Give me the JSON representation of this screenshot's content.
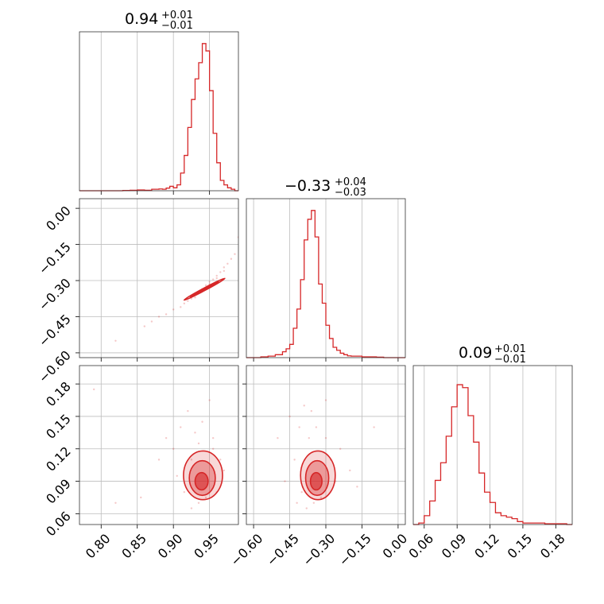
{
  "chart_data": {
    "type": "corner",
    "color": "#d62728",
    "panels": {
      "diag_0": {
        "title": {
          "value": "0.94",
          "plus": "+0.01",
          "minus": "−0.01"
        },
        "xlim": [
          0.77,
          0.99
        ],
        "hist_x": [
          0.77,
          0.79,
          0.81,
          0.83,
          0.84,
          0.85,
          0.86,
          0.87,
          0.88,
          0.885,
          0.89,
          0.895,
          0.9,
          0.905,
          0.91,
          0.915,
          0.92,
          0.925,
          0.93,
          0.935,
          0.94,
          0.945,
          0.95,
          0.955,
          0.96,
          0.965,
          0.97,
          0.975,
          0.98,
          0.985,
          0.99
        ],
        "hist_y": [
          0.0,
          0.0,
          0.0,
          0.002,
          0.003,
          0.005,
          0.003,
          0.01,
          0.012,
          0.01,
          0.018,
          0.03,
          0.02,
          0.04,
          0.12,
          0.24,
          0.43,
          0.62,
          0.76,
          0.87,
          1.0,
          0.95,
          0.68,
          0.39,
          0.19,
          0.07,
          0.04,
          0.02,
          0.01,
          0.0,
          0.0
        ]
      },
      "diag_1": {
        "title": {
          "value": "−0.33",
          "plus": "+0.04",
          "minus": "−0.03"
        },
        "xlim": [
          -0.63,
          0.03
        ],
        "hist_x": [
          -0.63,
          -0.6,
          -0.57,
          -0.54,
          -0.51,
          -0.48,
          -0.465,
          -0.45,
          -0.435,
          -0.42,
          -0.405,
          -0.39,
          -0.375,
          -0.36,
          -0.345,
          -0.33,
          -0.315,
          -0.3,
          -0.285,
          -0.27,
          -0.255,
          -0.24,
          -0.225,
          -0.21,
          -0.195,
          -0.18,
          -0.15,
          -0.12,
          -0.09,
          -0.06,
          -0.03,
          0.0,
          0.03
        ],
        "hist_y": [
          0.0,
          0.0,
          0.005,
          0.01,
          0.02,
          0.04,
          0.06,
          0.09,
          0.2,
          0.33,
          0.53,
          0.8,
          0.94,
          1.0,
          0.82,
          0.5,
          0.37,
          0.22,
          0.13,
          0.07,
          0.05,
          0.03,
          0.02,
          0.012,
          0.01,
          0.01,
          0.005,
          0.005,
          0.003,
          0.0,
          0.0,
          0.0,
          0.0
        ]
      },
      "diag_2": {
        "title": {
          "value": "0.09",
          "plus": "+0.01",
          "minus": "−0.01"
        },
        "xlim": [
          0.05,
          0.195
        ],
        "hist_x": [
          0.05,
          0.055,
          0.06,
          0.065,
          0.07,
          0.075,
          0.08,
          0.085,
          0.09,
          0.095,
          0.1,
          0.105,
          0.11,
          0.115,
          0.12,
          0.125,
          0.13,
          0.135,
          0.14,
          0.145,
          0.15,
          0.16,
          0.17,
          0.18,
          0.19,
          0.195
        ],
        "hist_y": [
          0.0,
          0.01,
          0.06,
          0.16,
          0.3,
          0.42,
          0.6,
          0.8,
          0.95,
          0.93,
          0.74,
          0.56,
          0.35,
          0.22,
          0.15,
          0.08,
          0.06,
          0.05,
          0.04,
          0.02,
          0.01,
          0.01,
          0.005,
          0.005,
          0.0,
          0.0
        ]
      },
      "lower_10": {
        "xlim": [
          0.77,
          0.99
        ],
        "ylim": [
          -0.62,
          0.04
        ],
        "scatter": [
          [
            0.82,
            -0.55
          ],
          [
            0.86,
            -0.49
          ],
          [
            0.87,
            -0.47
          ],
          [
            0.88,
            -0.45
          ],
          [
            0.89,
            -0.44
          ],
          [
            0.9,
            -0.42
          ],
          [
            0.91,
            -0.41
          ],
          [
            0.915,
            -0.395
          ],
          [
            0.92,
            -0.385
          ],
          [
            0.925,
            -0.375
          ],
          [
            0.93,
            -0.36
          ],
          [
            0.935,
            -0.35
          ],
          [
            0.94,
            -0.335
          ],
          [
            0.945,
            -0.32
          ],
          [
            0.95,
            -0.305
          ],
          [
            0.955,
            -0.295
          ],
          [
            0.96,
            -0.28
          ],
          [
            0.965,
            -0.265
          ],
          [
            0.97,
            -0.245
          ],
          [
            0.975,
            -0.23
          ],
          [
            0.98,
            -0.21
          ],
          [
            0.985,
            -0.19
          ],
          [
            0.99,
            -0.12
          ],
          [
            0.93,
            -0.37
          ],
          [
            0.94,
            -0.345
          ],
          [
            0.95,
            -0.315
          ],
          [
            0.96,
            -0.29
          ],
          [
            0.97,
            -0.26
          ]
        ],
        "contours": [
          {
            "cx": 0.943,
            "cy": -0.336,
            "rx": 0.032,
            "ry": 0.0052,
            "angle_deg": 28
          },
          {
            "cx": 0.943,
            "cy": -0.336,
            "rx": 0.022,
            "ry": 0.0035,
            "angle_deg": 28
          },
          {
            "cx": 0.943,
            "cy": -0.336,
            "rx": 0.012,
            "ry": 0.0022,
            "angle_deg": 28
          }
        ]
      },
      "lower_20": {
        "xlim": [
          0.77,
          0.99
        ],
        "ylim": [
          0.05,
          0.197
        ],
        "scatter": [
          [
            0.79,
            0.175
          ],
          [
            0.82,
            0.07
          ],
          [
            0.855,
            0.075
          ],
          [
            0.88,
            0.11
          ],
          [
            0.89,
            0.13
          ],
          [
            0.9,
            0.12
          ],
          [
            0.905,
            0.095
          ],
          [
            0.91,
            0.14
          ],
          [
            0.915,
            0.08
          ],
          [
            0.92,
            0.155
          ],
          [
            0.925,
            0.065
          ],
          [
            0.93,
            0.135
          ],
          [
            0.935,
            0.07
          ],
          [
            0.94,
            0.145
          ],
          [
            0.945,
            0.075
          ],
          [
            0.95,
            0.165
          ],
          [
            0.955,
            0.12
          ],
          [
            0.96,
            0.08
          ],
          [
            0.965,
            0.11
          ],
          [
            0.97,
            0.1
          ],
          [
            0.955,
            0.13
          ],
          [
            0.935,
            0.125
          ],
          [
            0.925,
            0.11
          ]
        ],
        "contours": [
          {
            "cx": 0.941,
            "cy": 0.0955,
            "rx": 0.027,
            "ry": 0.0225,
            "angle_deg": 0
          },
          {
            "cx": 0.94,
            "cy": 0.093,
            "rx": 0.018,
            "ry": 0.016,
            "angle_deg": 0
          },
          {
            "cx": 0.939,
            "cy": 0.09,
            "rx": 0.009,
            "ry": 0.008,
            "angle_deg": 0
          }
        ]
      },
      "lower_21": {
        "xlim": [
          -0.63,
          0.03
        ],
        "ylim": [
          0.05,
          0.197
        ],
        "scatter": [
          [
            -0.5,
            0.13
          ],
          [
            -0.47,
            0.09
          ],
          [
            -0.45,
            0.15
          ],
          [
            -0.43,
            0.11
          ],
          [
            -0.42,
            0.07
          ],
          [
            -0.41,
            0.14
          ],
          [
            -0.4,
            0.08
          ],
          [
            -0.39,
            0.16
          ],
          [
            -0.38,
            0.065
          ],
          [
            -0.37,
            0.13
          ],
          [
            -0.36,
            0.155
          ],
          [
            -0.35,
            0.07
          ],
          [
            -0.34,
            0.14
          ],
          [
            -0.32,
            0.075
          ],
          [
            -0.3,
            0.13
          ],
          [
            -0.28,
            0.11
          ],
          [
            -0.26,
            0.09
          ],
          [
            -0.24,
            0.12
          ],
          [
            -0.2,
            0.1
          ],
          [
            -0.1,
            0.14
          ],
          [
            -0.17,
            0.085
          ],
          [
            -0.3,
            0.165
          ]
        ],
        "contours": [
          {
            "cx": -0.333,
            "cy": 0.0955,
            "rx": 0.072,
            "ry": 0.0225,
            "angle_deg": 0
          },
          {
            "cx": -0.336,
            "cy": 0.093,
            "rx": 0.048,
            "ry": 0.016,
            "angle_deg": 0
          },
          {
            "cx": -0.34,
            "cy": 0.09,
            "rx": 0.024,
            "ry": 0.008,
            "angle_deg": 0
          }
        ]
      }
    },
    "x_ticks": {
      "col0": [
        "0.80",
        "0.85",
        "0.90",
        "0.95"
      ],
      "col1": [
        "−0.60",
        "−0.45",
        "−0.30",
        "−0.15",
        "0.00"
      ],
      "col2": [
        "0.06",
        "0.09",
        "0.12",
        "0.15",
        "0.18"
      ]
    },
    "y_ticks": {
      "row1": [
        "0.00",
        "−0.15",
        "−0.30",
        "−0.45",
        "−0.60"
      ],
      "row2": [
        "0.18",
        "0.15",
        "0.12",
        "0.09",
        "0.06"
      ]
    },
    "x_tick_values": {
      "col0": [
        0.8,
        0.85,
        0.9,
        0.95
      ],
      "col1": [
        -0.6,
        -0.45,
        -0.3,
        -0.15,
        0.0
      ],
      "col2": [
        0.06,
        0.09,
        0.12,
        0.15,
        0.18
      ]
    },
    "y_tick_values": {
      "row1": [
        0.0,
        -0.15,
        -0.3,
        -0.45,
        -0.6
      ],
      "row2": [
        0.18,
        0.15,
        0.12,
        0.09,
        0.06
      ]
    },
    "grid": true,
    "axis_labels": {
      "x": [
        "",
        "",
        ""
      ],
      "y": [
        "",
        "",
        ""
      ]
    }
  }
}
